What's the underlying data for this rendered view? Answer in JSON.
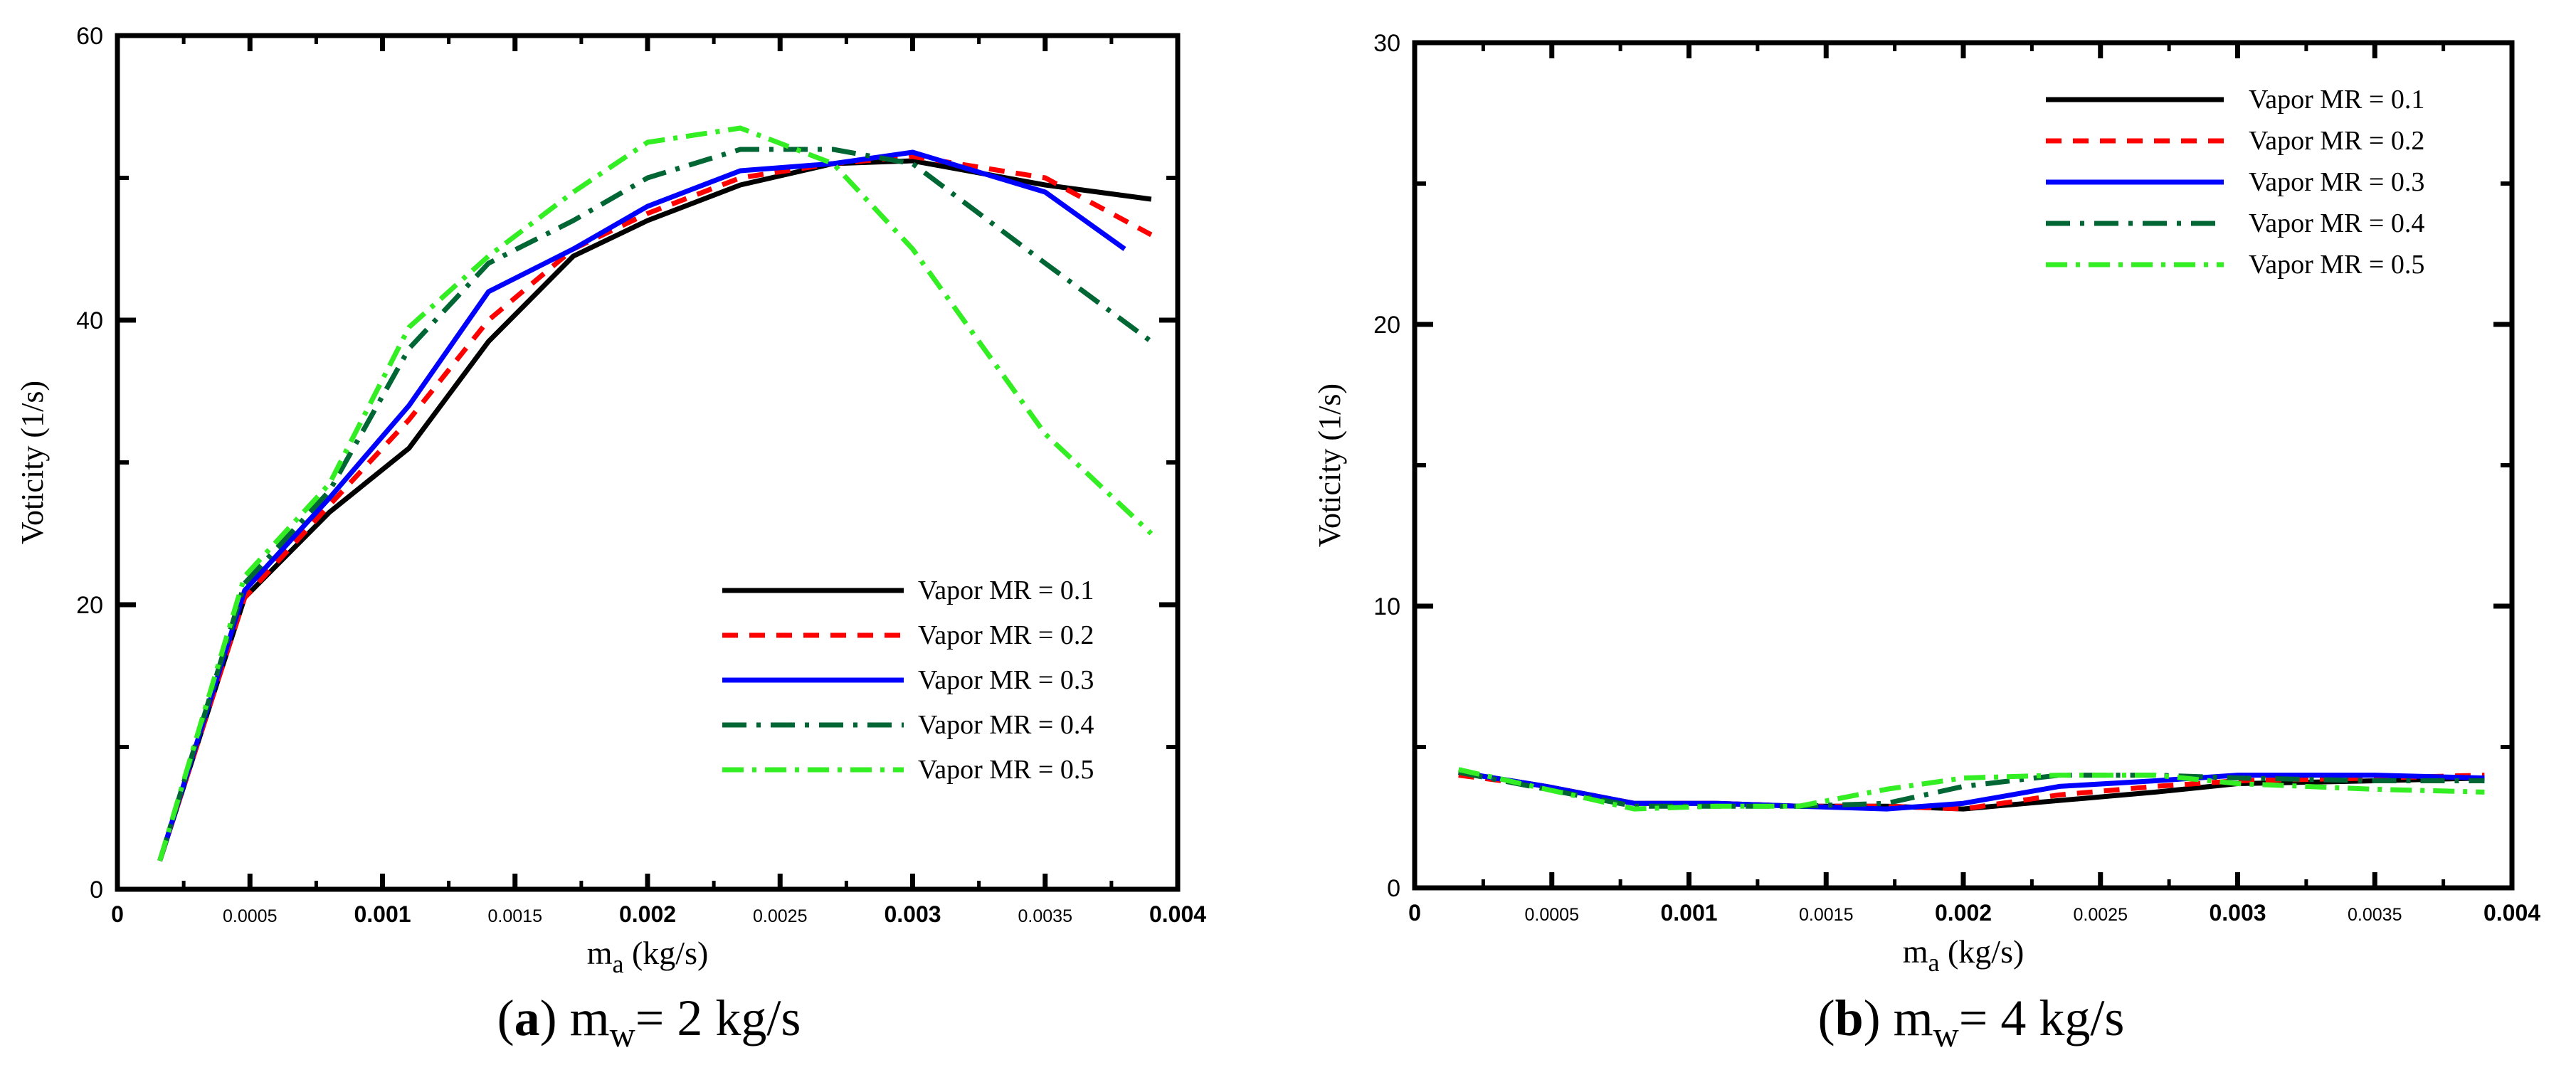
{
  "figure": {
    "panels": [
      {
        "letter": "a",
        "caption_letter": "(a)",
        "caption_text": "ṁw= 2 kg/s",
        "caption_m": "m",
        "caption_sub": "w",
        "caption_rest": "= 2 kg/s"
      },
      {
        "letter": "b",
        "caption_letter": "(b)",
        "caption_text": "ṁw= 4 kg/s",
        "caption_m": "m",
        "caption_sub": "w",
        "caption_rest": "= 4 kg/s"
      }
    ]
  },
  "colors": {
    "s1": "#000000",
    "s2": "#ff0000",
    "s3": "#0000ff",
    "s4": "#006633",
    "s5": "#33ee22"
  },
  "chart_data": [
    {
      "type": "line",
      "xlabel_main": "m",
      "xlabel_sub": "a",
      "xlabel_unit": "(kg/s)",
      "ylabel": "Voticity (1/s)",
      "xlim": [
        0,
        0.004
      ],
      "ylim": [
        0,
        60
      ],
      "xticks": [
        0,
        0.0005,
        0.001,
        0.0015,
        0.002,
        0.0025,
        0.003,
        0.0035,
        0.004
      ],
      "xtick_labels": [
        "0",
        "0.0005",
        "0.001",
        "0.0015",
        "0.002",
        "0.0025",
        "0.003",
        "0.0035",
        "0.004"
      ],
      "yticks": [
        0,
        20,
        40,
        60
      ],
      "ytick_labels": [
        "0",
        "20",
        "40",
        "60"
      ],
      "legend_position": "bottom-right",
      "series": [
        {
          "name": "Vapor MR = 0.1",
          "x": [
            0.00016,
            0.00048,
            0.0008,
            0.0011,
            0.0014,
            0.00172,
            0.002,
            0.00235,
            0.0027,
            0.003,
            0.0035,
            0.0039
          ],
          "values": [
            2,
            20.5,
            26.5,
            31,
            38.5,
            44.5,
            47,
            49.5,
            51,
            51.2,
            49.5,
            48.5
          ]
        },
        {
          "name": "Vapor MR = 0.2",
          "x": [
            0.00016,
            0.00048,
            0.0008,
            0.0011,
            0.0014,
            0.00172,
            0.002,
            0.00235,
            0.0027,
            0.003,
            0.0035,
            0.0039
          ],
          "values": [
            2,
            20.5,
            27,
            33,
            40,
            45,
            47.5,
            50,
            51,
            51.5,
            50,
            46
          ]
        },
        {
          "name": "Vapor MR = 0.3",
          "x": [
            0.00016,
            0.00048,
            0.0008,
            0.0011,
            0.0014,
            0.00172,
            0.002,
            0.00235,
            0.0027,
            0.003,
            0.0035,
            0.0038
          ],
          "values": [
            2,
            21,
            27.5,
            34,
            42,
            45,
            48,
            50.5,
            51,
            51.8,
            49,
            45
          ]
        },
        {
          "name": "Vapor MR = 0.4",
          "x": [
            0.00016,
            0.00048,
            0.0008,
            0.0011,
            0.0014,
            0.00172,
            0.002,
            0.00235,
            0.0027,
            0.003,
            0.0035,
            0.0039
          ],
          "values": [
            2,
            21.5,
            28,
            38,
            44,
            47,
            50,
            52,
            52,
            51,
            44,
            38.5
          ]
        },
        {
          "name": "Vapor MR = 0.5",
          "x": [
            0.00016,
            0.00048,
            0.0008,
            0.0011,
            0.0014,
            0.00172,
            0.002,
            0.00235,
            0.0027,
            0.003,
            0.0035,
            0.0039
          ],
          "values": [
            2,
            22,
            28.5,
            39.5,
            44.5,
            49,
            52.5,
            53.5,
            51,
            45,
            32,
            25
          ]
        }
      ]
    },
    {
      "type": "line",
      "xlabel_main": "m",
      "xlabel_sub": "a",
      "xlabel_unit": "(kg/s)",
      "ylabel": "Voticity (1/s)",
      "xlim": [
        0,
        0.004
      ],
      "ylim": [
        0,
        30
      ],
      "xticks": [
        0,
        0.0005,
        0.001,
        0.0015,
        0.002,
        0.0025,
        0.003,
        0.0035,
        0.004
      ],
      "xtick_labels": [
        "0",
        "0.0005",
        "0.001",
        "0.0015",
        "0.002",
        "0.0025",
        "0.003",
        "0.0035",
        "0.004"
      ],
      "yticks": [
        0,
        10,
        20,
        30
      ],
      "ytick_labels": [
        "0",
        "10",
        "20",
        "30"
      ],
      "legend_position": "top-right",
      "series": [
        {
          "name": "Vapor MR = 0.1",
          "x": [
            0.00016,
            0.00048,
            0.0008,
            0.0011,
            0.0014,
            0.00172,
            0.002,
            0.00235,
            0.0027,
            0.003,
            0.0035,
            0.0039
          ],
          "values": [
            4.1,
            3.6,
            3.0,
            3.0,
            2.9,
            2.9,
            2.8,
            3.1,
            3.4,
            3.7,
            3.8,
            3.9
          ]
        },
        {
          "name": "Vapor MR = 0.2",
          "x": [
            0.00016,
            0.00048,
            0.0008,
            0.0011,
            0.0014,
            0.00172,
            0.002,
            0.00235,
            0.0027,
            0.003,
            0.0035,
            0.0039
          ],
          "values": [
            4.0,
            3.6,
            3.0,
            3.0,
            2.9,
            2.9,
            2.8,
            3.3,
            3.6,
            3.8,
            3.9,
            4.0
          ]
        },
        {
          "name": "Vapor MR = 0.3",
          "x": [
            0.00016,
            0.00048,
            0.0008,
            0.0011,
            0.0014,
            0.00172,
            0.002,
            0.00235,
            0.0027,
            0.003,
            0.0035,
            0.0039
          ],
          "values": [
            4.1,
            3.6,
            3.0,
            3.0,
            2.9,
            2.8,
            3.0,
            3.6,
            3.8,
            4.0,
            4.0,
            3.9
          ]
        },
        {
          "name": "Vapor MR = 0.4",
          "x": [
            0.00016,
            0.00048,
            0.0008,
            0.0011,
            0.0014,
            0.00172,
            0.002,
            0.00235,
            0.0027,
            0.003,
            0.0035,
            0.0039
          ],
          "values": [
            4.1,
            3.5,
            2.9,
            2.9,
            2.9,
            3.0,
            3.6,
            4.0,
            4.0,
            3.9,
            3.8,
            3.8
          ]
        },
        {
          "name": "Vapor MR = 0.5",
          "x": [
            0.00016,
            0.00048,
            0.0008,
            0.0011,
            0.0014,
            0.00172,
            0.002,
            0.00235,
            0.0027,
            0.003,
            0.0035,
            0.0039
          ],
          "values": [
            4.2,
            3.5,
            2.8,
            2.9,
            2.9,
            3.5,
            3.9,
            4.0,
            4.0,
            3.7,
            3.5,
            3.4
          ]
        }
      ]
    }
  ]
}
